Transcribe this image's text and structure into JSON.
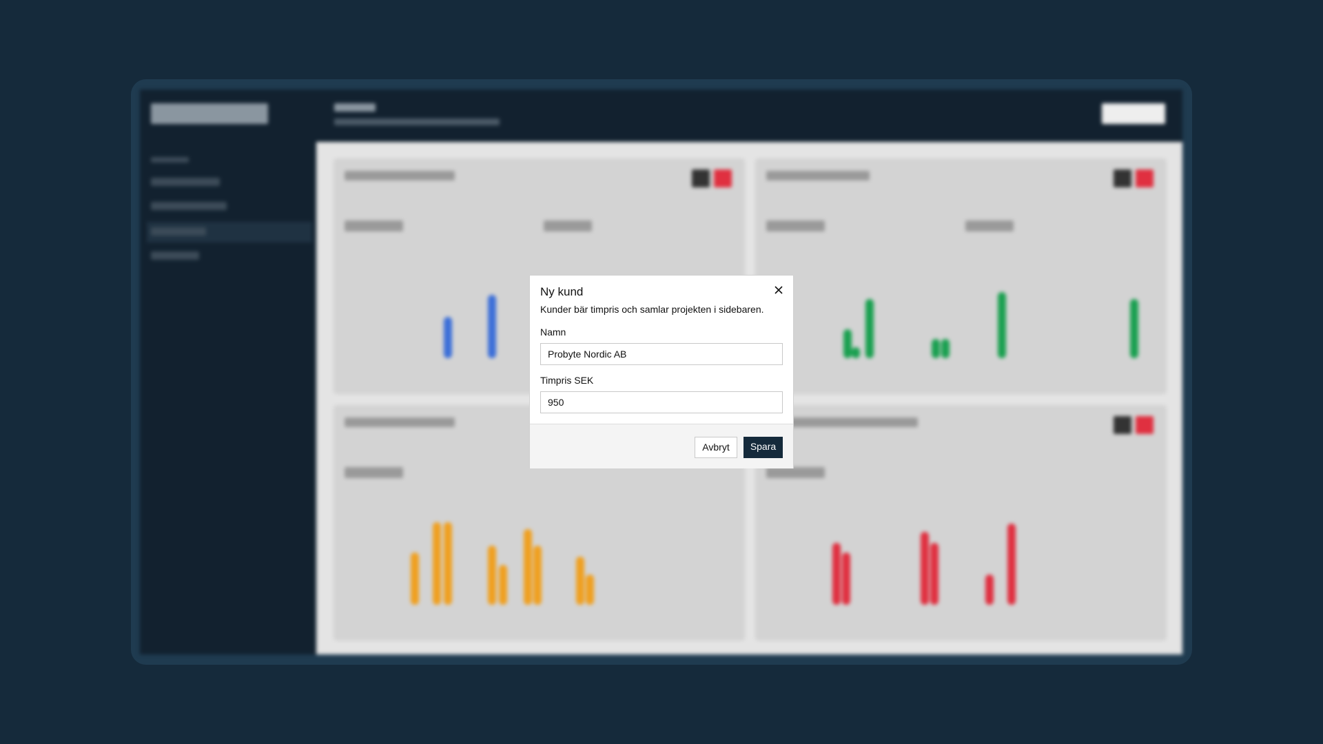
{
  "modal": {
    "title": "Ny kund",
    "description": "Kunder bär timpris och samlar projekten i sidebaren.",
    "fields": [
      {
        "label": "Namn",
        "value": "Probyte Nordic AB"
      },
      {
        "label": "Timpris SEK",
        "value": "950"
      }
    ],
    "buttons": {
      "cancel": "Avbryt",
      "save": "Spara"
    }
  }
}
